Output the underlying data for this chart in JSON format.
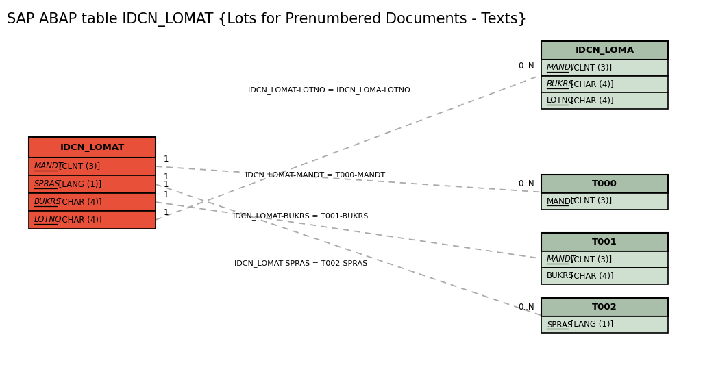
{
  "title": "SAP ABAP table IDCN_LOMAT {Lots for Prenumbered Documents - Texts}",
  "title_fontsize": 15,
  "fig_bg": "#ffffff",
  "main_table": {
    "name": "IDCN_LOMAT",
    "header_color": "#e8503a",
    "field_color": "#e8503a",
    "border_color": "#000000",
    "fields": [
      {
        "name": "MANDT",
        "type": "[CLNT (3)]",
        "italic": true,
        "underline": true
      },
      {
        "name": "SPRAS",
        "type": "[LANG (1)]",
        "italic": true,
        "underline": true
      },
      {
        "name": "BUKRS",
        "type": "[CHAR (4)]",
        "italic": true,
        "underline": true
      },
      {
        "name": "LOTNO",
        "type": "[CHAR (4)]",
        "italic": true,
        "underline": true
      }
    ]
  },
  "right_tables": [
    {
      "name": "IDCN_LOMA",
      "header_color": "#aabfaa",
      "field_color": "#d0e0d0",
      "border_color": "#000000",
      "fields": [
        {
          "name": "MANDT",
          "type": "[CLNT (3)]",
          "italic": true,
          "underline": true
        },
        {
          "name": "BUKRS",
          "type": "[CHAR (4)]",
          "italic": true,
          "underline": true
        },
        {
          "name": "LOTNO",
          "type": "[CHAR (4)]",
          "italic": false,
          "underline": true
        }
      ]
    },
    {
      "name": "T000",
      "header_color": "#aabfaa",
      "field_color": "#d0e0d0",
      "border_color": "#000000",
      "fields": [
        {
          "name": "MANDT",
          "type": "[CLNT (3)]",
          "italic": false,
          "underline": true
        }
      ]
    },
    {
      "name": "T001",
      "header_color": "#aabfaa",
      "field_color": "#d0e0d0",
      "border_color": "#000000",
      "fields": [
        {
          "name": "MANDT",
          "type": "[CLNT (3)]",
          "italic": true,
          "underline": true
        },
        {
          "name": "BUKRS",
          "type": "[CHAR (4)]",
          "italic": false,
          "underline": false
        }
      ]
    },
    {
      "name": "T002",
      "header_color": "#aabfaa",
      "field_color": "#d0e0d0",
      "border_color": "#000000",
      "fields": [
        {
          "name": "SPRAS",
          "type": "[LANG (1)]",
          "italic": false,
          "underline": true
        }
      ]
    }
  ]
}
